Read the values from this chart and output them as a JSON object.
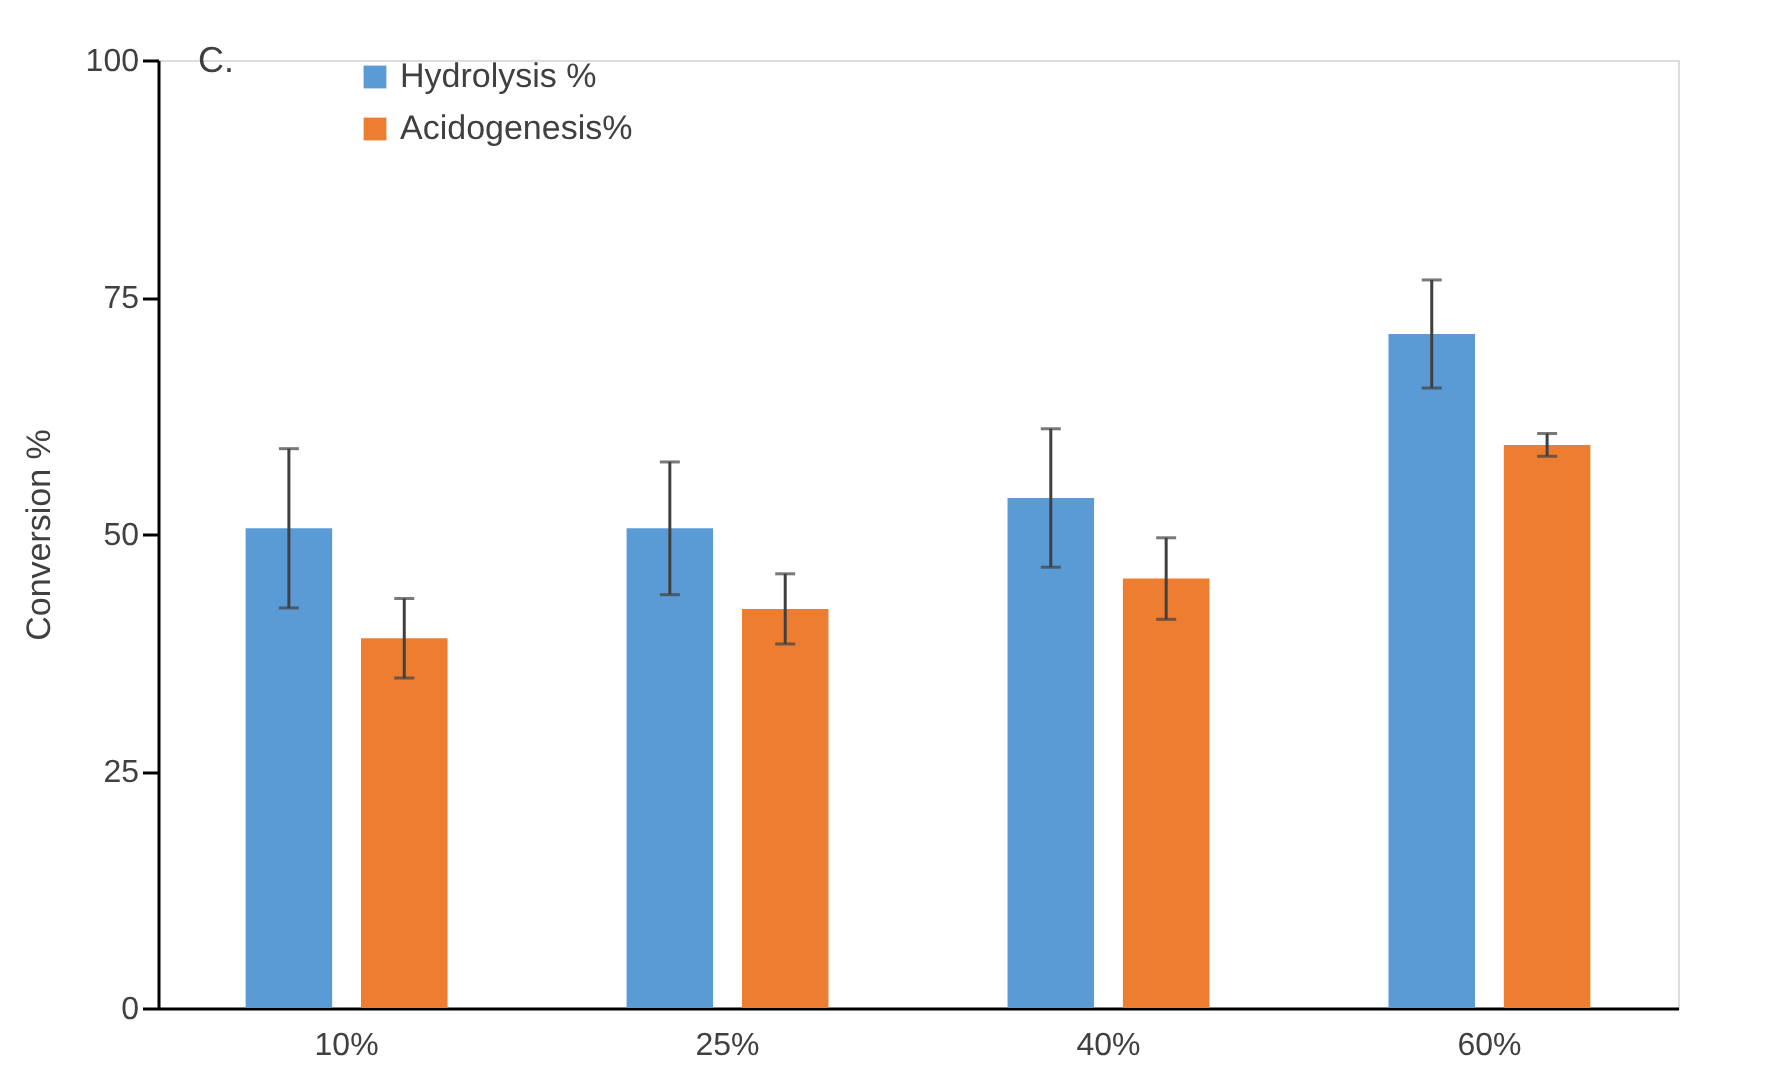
{
  "chart_data": {
    "type": "bar",
    "categories": [
      "10%",
      "25%",
      "40%",
      "60%"
    ],
    "series": [
      {
        "name": "Hydrolysis %",
        "color": "#5b9bd5",
        "values": [
          50.6,
          50.6,
          53.8,
          71.1
        ],
        "errors": [
          8.4,
          7.0,
          7.3,
          5.7
        ]
      },
      {
        "name": "Acidogenesis%",
        "color": "#ed7d31",
        "values": [
          39.0,
          42.1,
          45.3,
          59.4
        ],
        "errors": [
          4.2,
          3.7,
          4.3,
          1.2
        ]
      }
    ],
    "ylabel": "Conversion %",
    "ylim": [
      0,
      100
    ],
    "yticks": [
      0,
      25,
      50,
      75,
      100
    ],
    "annotations": [
      "C."
    ],
    "legend": "top left",
    "grid": false
  }
}
